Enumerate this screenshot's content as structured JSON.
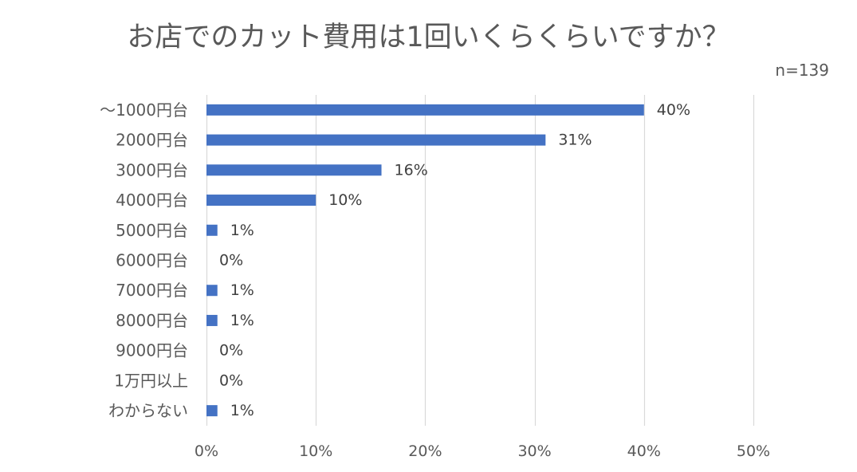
{
  "chart_data": {
    "type": "bar",
    "orientation": "horizontal",
    "title": "お店でのカット費用は1回いくらくらいですか？",
    "annotation": "n=139",
    "categories": [
      "～1000円台",
      "2000円台",
      "3000円台",
      "4000円台",
      "5000円台",
      "6000円台",
      "7000円台",
      "8000円台",
      "9000円台",
      "1万円以上",
      "わからない"
    ],
    "values": [
      40,
      31,
      16,
      10,
      1,
      0,
      1,
      1,
      0,
      0,
      1
    ],
    "unit": "%",
    "xlim": [
      0,
      50
    ],
    "x_ticks": [
      0,
      10,
      20,
      30,
      40,
      50
    ],
    "grid": true,
    "legend": false,
    "colors": {
      "bar": "#4472C4",
      "text": "#595959",
      "data_label": "#404040",
      "grid": "#D9D9D9",
      "background": "#FFFFFF"
    }
  }
}
